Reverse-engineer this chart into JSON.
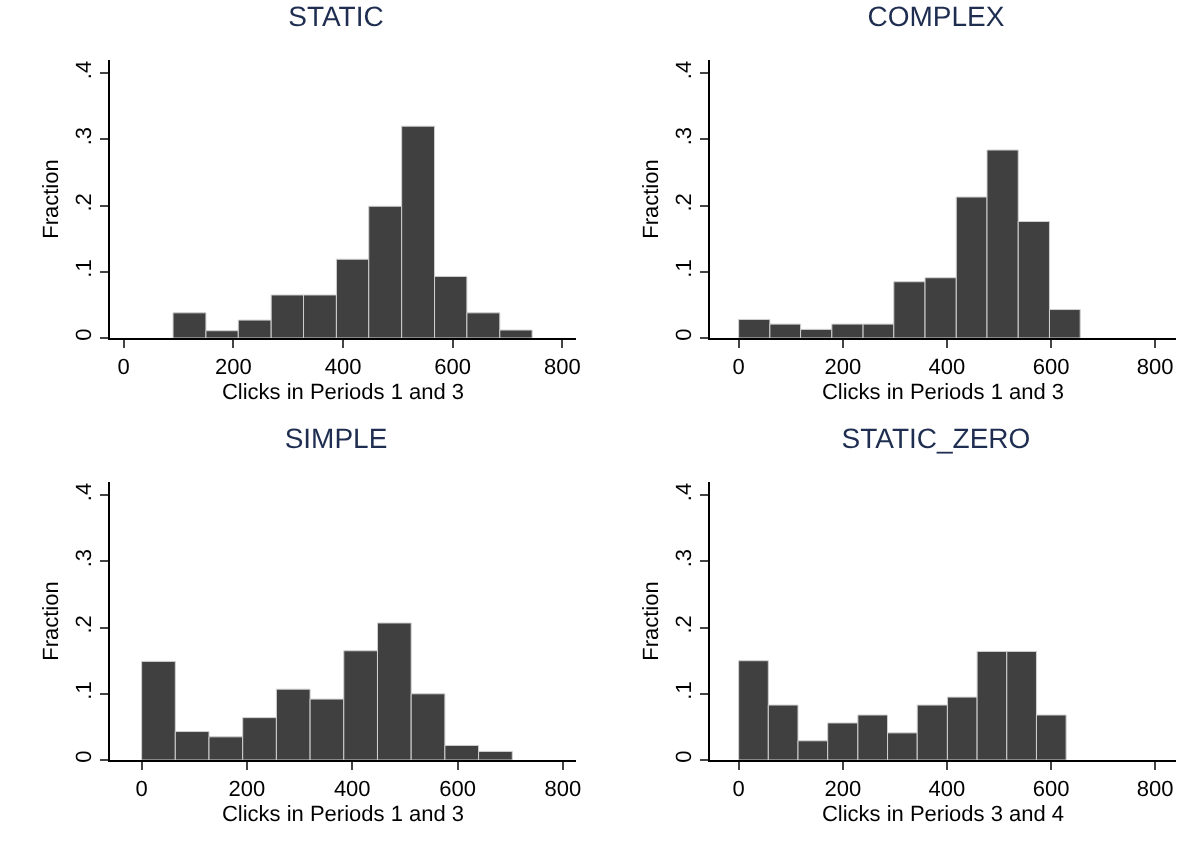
{
  "chart_data": [
    {
      "type": "histogram",
      "title": "STATIC",
      "xlabel": "Clicks in Periods 1 and 3",
      "ylabel": "Fraction",
      "color": "#404040",
      "bins": [
        90,
        150,
        209,
        269,
        328,
        388,
        447,
        507,
        567,
        626,
        686,
        745
      ],
      "values": [
        0.038,
        0.011,
        0.027,
        0.065,
        0.065,
        0.119,
        0.199,
        0.32,
        0.093,
        0.038,
        0.012
      ],
      "xlim": [
        -25,
        825
      ],
      "xticks": [
        0,
        200,
        400,
        600,
        800
      ],
      "ylim": [
        0,
        0.42
      ],
      "yticks": [
        {
          "value": 0,
          "label": "0"
        },
        {
          "value": 0.1,
          "label": ".1"
        },
        {
          "value": 0.2,
          "label": ".2"
        },
        {
          "value": 0.3,
          "label": ".3"
        },
        {
          "value": 0.4,
          "label": ".4"
        }
      ],
      "grid": false
    },
    {
      "type": "histogram",
      "title": "COMPLEX",
      "xlabel": "Clicks in Periods 1 and 3",
      "ylabel": "Fraction",
      "color": "#404040",
      "bins": [
        0,
        60,
        119,
        179,
        239,
        298,
        358,
        418,
        477,
        537,
        597,
        656
      ],
      "values": [
        0.028,
        0.021,
        0.013,
        0.021,
        0.021,
        0.085,
        0.091,
        0.213,
        0.284,
        0.176,
        0.043
      ],
      "xlim": [
        -55,
        840
      ],
      "xticks": [
        0,
        200,
        400,
        600,
        800
      ],
      "ylim": [
        0,
        0.42
      ],
      "yticks": [
        {
          "value": 0,
          "label": "0"
        },
        {
          "value": 0.1,
          "label": ".1"
        },
        {
          "value": 0.2,
          "label": ".2"
        },
        {
          "value": 0.3,
          "label": ".3"
        },
        {
          "value": 0.4,
          "label": ".4"
        }
      ],
      "grid": false
    },
    {
      "type": "histogram",
      "title": "SIMPLE",
      "xlabel": "Clicks in Periods 1 and 3",
      "ylabel": "Fraction",
      "color": "#404040",
      "bins": [
        0,
        64,
        128,
        192,
        256,
        320,
        384,
        448,
        512,
        576,
        640,
        704
      ],
      "values": [
        0.149,
        0.043,
        0.035,
        0.064,
        0.107,
        0.092,
        0.165,
        0.207,
        0.1,
        0.022,
        0.013
      ],
      "xlim": [
        -60,
        825
      ],
      "xticks": [
        0,
        200,
        400,
        600,
        800
      ],
      "ylim": [
        0,
        0.42
      ],
      "yticks": [
        {
          "value": 0,
          "label": "0"
        },
        {
          "value": 0.1,
          "label": ".1"
        },
        {
          "value": 0.2,
          "label": ".2"
        },
        {
          "value": 0.3,
          "label": ".3"
        },
        {
          "value": 0.4,
          "label": ".4"
        }
      ],
      "grid": false
    },
    {
      "type": "histogram",
      "title": "STATIC_ZERO",
      "xlabel": "Clicks in Periods 3 and 4",
      "ylabel": "Fraction",
      "color": "#404040",
      "bins": [
        0,
        57,
        114,
        171,
        229,
        286,
        343,
        401,
        458,
        515,
        572,
        629
      ],
      "values": [
        0.15,
        0.083,
        0.029,
        0.056,
        0.068,
        0.041,
        0.083,
        0.095,
        0.164,
        0.164,
        0.068
      ],
      "xlim": [
        -55,
        840
      ],
      "xticks": [
        0,
        200,
        400,
        600,
        800
      ],
      "ylim": [
        0,
        0.42
      ],
      "yticks": [
        {
          "value": 0,
          "label": "0"
        },
        {
          "value": 0.1,
          "label": ".1"
        },
        {
          "value": 0.2,
          "label": ".2"
        },
        {
          "value": 0.3,
          "label": ".3"
        },
        {
          "value": 0.4,
          "label": ".4"
        }
      ],
      "grid": false
    }
  ]
}
